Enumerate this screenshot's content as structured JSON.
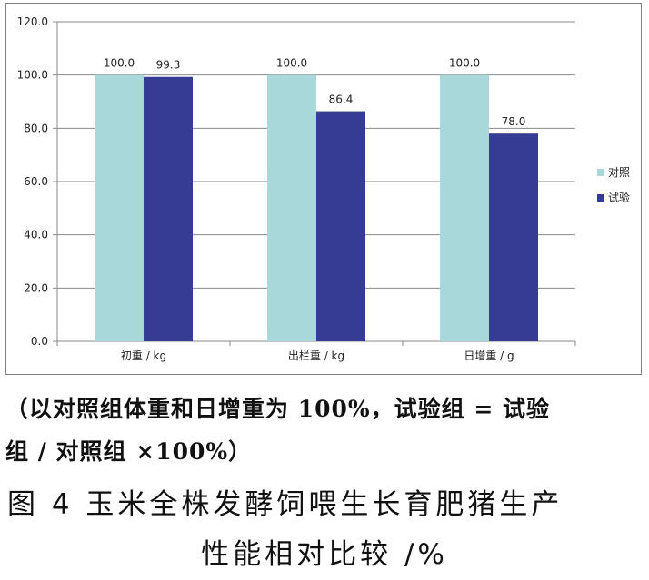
{
  "chart_data": {
    "type": "bar",
    "categories": [
      "初重 / kg",
      "出栏重 / kg",
      "日增重 / g"
    ],
    "series": [
      {
        "name": "对照",
        "values": [
          100.0,
          100.0,
          100.0
        ],
        "color": "#a8d8da"
      },
      {
        "name": "试验",
        "values": [
          99.3,
          86.4,
          78.0
        ],
        "color": "#363c94"
      }
    ],
    "ylim": [
      0,
      120
    ],
    "yticks": [
      "0.0",
      "20.0",
      "40.0",
      "60.0",
      "80.0",
      "100.0",
      "120.0"
    ],
    "data_labels": [
      [
        "100.0",
        "100.0",
        "100.0"
      ],
      [
        "99.3",
        "86.4",
        "78.0"
      ]
    ],
    "legend_position": "right",
    "grid": true
  },
  "note": {
    "line1": "（以对照组体重和日增重为 100%，试验组 = 试验",
    "line2": "组 / 对照组 ×100%）"
  },
  "caption": {
    "line1": "图 4  玉米全株发酵饲喂生长育肥猪生产",
    "line2": "性能相对比较 /%"
  }
}
